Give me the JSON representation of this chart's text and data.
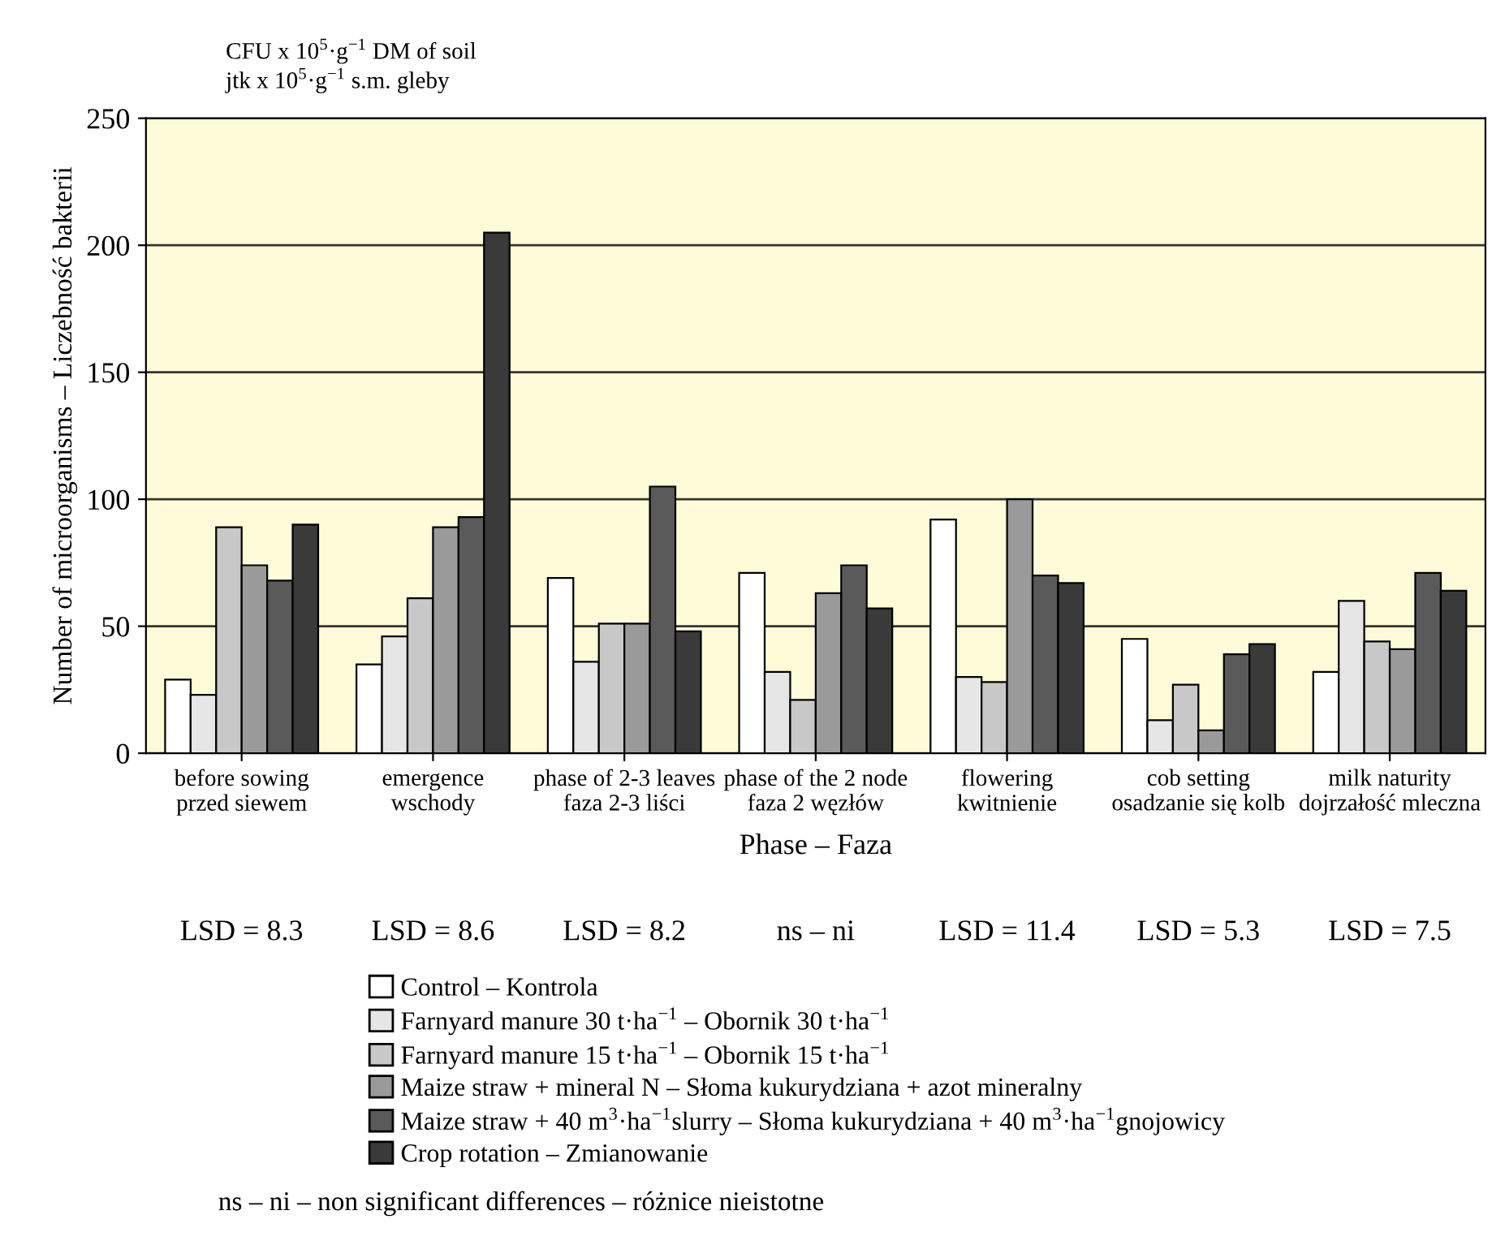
{
  "chart_data": {
    "type": "bar",
    "title": "CFU x 10$^{5}$·g$^{−1}$ DM of soil\njtk x 10$^{5}$·g$^{−1}$ s.m. gleby",
    "ylabel": "Number of microorganisms – Liczebność bakterii",
    "xlabel": "Phase – Faza",
    "categories": [
      "before sowing\nprzed siewem",
      "emergence\nwschody",
      "phase of 2-3 leaves\nfaza 2-3 liści",
      "phase of the 2 node\nfaza 2 węzłów",
      "flowering\nkwitnienie",
      "cob setting\nosadzanie się kolb",
      "milk naturity\ndojrzałość mleczna"
    ],
    "series": [
      {
        "name": "Control – Kontrola",
        "color": "#ffffff",
        "values": [
          29,
          35,
          69,
          71,
          92,
          45,
          32
        ]
      },
      {
        "name": "Farnyard manure 30 t·ha$^{−1}$ – Obornik 30 t·ha$^{−1}$",
        "color": "#e6e6e6",
        "values": [
          23,
          46,
          36,
          32,
          30,
          13,
          60
        ]
      },
      {
        "name": "Farnyard manure 15 t·ha$^{−1}$ – Obornik 15 t·ha$^{−1}$",
        "color": "#c8c8c8",
        "values": [
          89,
          61,
          51,
          21,
          28,
          27,
          44
        ]
      },
      {
        "name": "Maize straw + mineral N – Słoma kukurydziana + azot mineralny",
        "color": "#9a9a9a",
        "values": [
          74,
          89,
          51,
          63,
          100,
          9,
          41
        ]
      },
      {
        "name": "Maize straw + 40 m$^{3}$·ha$^{−1}$slurry – Słoma kukurydziana + 40 m$^{3}$·ha$^{−1}$gnojowicy",
        "color": "#5a5a5a",
        "values": [
          68,
          93,
          105,
          74,
          70,
          39,
          71
        ]
      },
      {
        "name": "Crop rotation – Zmianowanie",
        "color": "#3a3a3a",
        "values": [
          90,
          205,
          48,
          57,
          67,
          43,
          64
        ]
      }
    ],
    "ylim": [
      0,
      250
    ],
    "yticks": [
      0,
      50,
      100,
      150,
      200,
      250
    ],
    "grid": "y",
    "legend": "bottom",
    "annotations": [
      "LSD = 8.3",
      "LSD = 8.6",
      "LSD = 8.2",
      "ns – ni",
      "LSD = 11.4",
      "LSD = 5.3",
      "LSD = 7.5",
      "ns – ni – non significant differences – różnice nieistotne"
    ]
  }
}
